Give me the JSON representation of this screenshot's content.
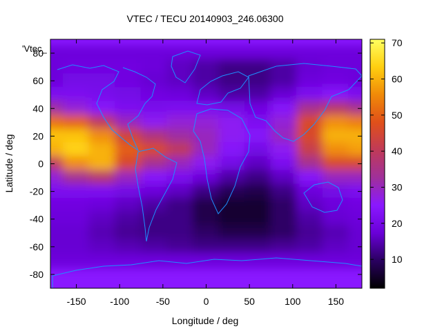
{
  "chart_data": {
    "type": "heatmap",
    "title": "VTEC / TECU 20140903_246.06300",
    "series_label": "'Vtec_",
    "xlabel": "Longitude / deg",
    "ylabel": "Latitude / deg",
    "xlim": [
      -180,
      180
    ],
    "ylim": [
      -90,
      90
    ],
    "xticks": [
      -150,
      -100,
      -50,
      0,
      50,
      100,
      150
    ],
    "yticks": [
      -80,
      -60,
      -40,
      -20,
      0,
      20,
      40,
      60,
      80
    ],
    "colorbar": {
      "range": [
        2,
        71
      ],
      "ticks": [
        10,
        20,
        30,
        40,
        50,
        60,
        70
      ],
      "palette": [
        "#000000",
        "#2a0060",
        "#6a00d8",
        "#8a18ff",
        "#a0309a",
        "#c03a58",
        "#e0501a",
        "#f08a08",
        "#ffcf10",
        "#ffff60"
      ]
    },
    "grid": false,
    "legend_position": "top-left",
    "z_grid": {
      "lon_start": -180,
      "lon_step": 30,
      "lat_start": 80,
      "lat_step": -10,
      "rows": [
        [
          18,
          18,
          18,
          18,
          18,
          18,
          18,
          18,
          18,
          18,
          18,
          18,
          18
        ],
        [
          18,
          19,
          19,
          19,
          18,
          16,
          14,
          12,
          12,
          14,
          17,
          18,
          18
        ],
        [
          18,
          20,
          20,
          19,
          17,
          16,
          14,
          12,
          12,
          14,
          18,
          19,
          18
        ],
        [
          22,
          22,
          21,
          20,
          19,
          18,
          16,
          14,
          14,
          17,
          22,
          24,
          22
        ],
        [
          32,
          28,
          24,
          22,
          21,
          22,
          22,
          20,
          19,
          24,
          34,
          38,
          34
        ],
        [
          52,
          50,
          40,
          30,
          26,
          28,
          28,
          26,
          22,
          28,
          46,
          56,
          54
        ],
        [
          62,
          62,
          56,
          44,
          36,
          32,
          30,
          26,
          24,
          30,
          46,
          60,
          60
        ],
        [
          60,
          64,
          60,
          50,
          46,
          40,
          30,
          24,
          20,
          26,
          42,
          56,
          58
        ],
        [
          40,
          56,
          60,
          46,
          34,
          30,
          26,
          20,
          16,
          22,
          34,
          46,
          46
        ],
        [
          28,
          34,
          38,
          30,
          24,
          22,
          18,
          14,
          12,
          16,
          24,
          30,
          30
        ],
        [
          22,
          22,
          22,
          20,
          18,
          16,
          12,
          9,
          8,
          12,
          18,
          20,
          22
        ],
        [
          19,
          19,
          18,
          16,
          14,
          12,
          8,
          6,
          6,
          10,
          16,
          18,
          19
        ],
        [
          18,
          18,
          16,
          14,
          12,
          12,
          8,
          6,
          6,
          10,
          14,
          17,
          18
        ],
        [
          17,
          17,
          15,
          13,
          12,
          12,
          10,
          8,
          8,
          10,
          13,
          15,
          17
        ],
        [
          17,
          17,
          16,
          15,
          14,
          13,
          12,
          12,
          12,
          13,
          14,
          16,
          17
        ],
        [
          18,
          18,
          18,
          18,
          18,
          18,
          18,
          18,
          18,
          18,
          18,
          18,
          18
        ]
      ]
    }
  },
  "icons": {
    "coastline": "coastline-overlay"
  },
  "colors": {
    "coastline": "#1e90ff"
  }
}
